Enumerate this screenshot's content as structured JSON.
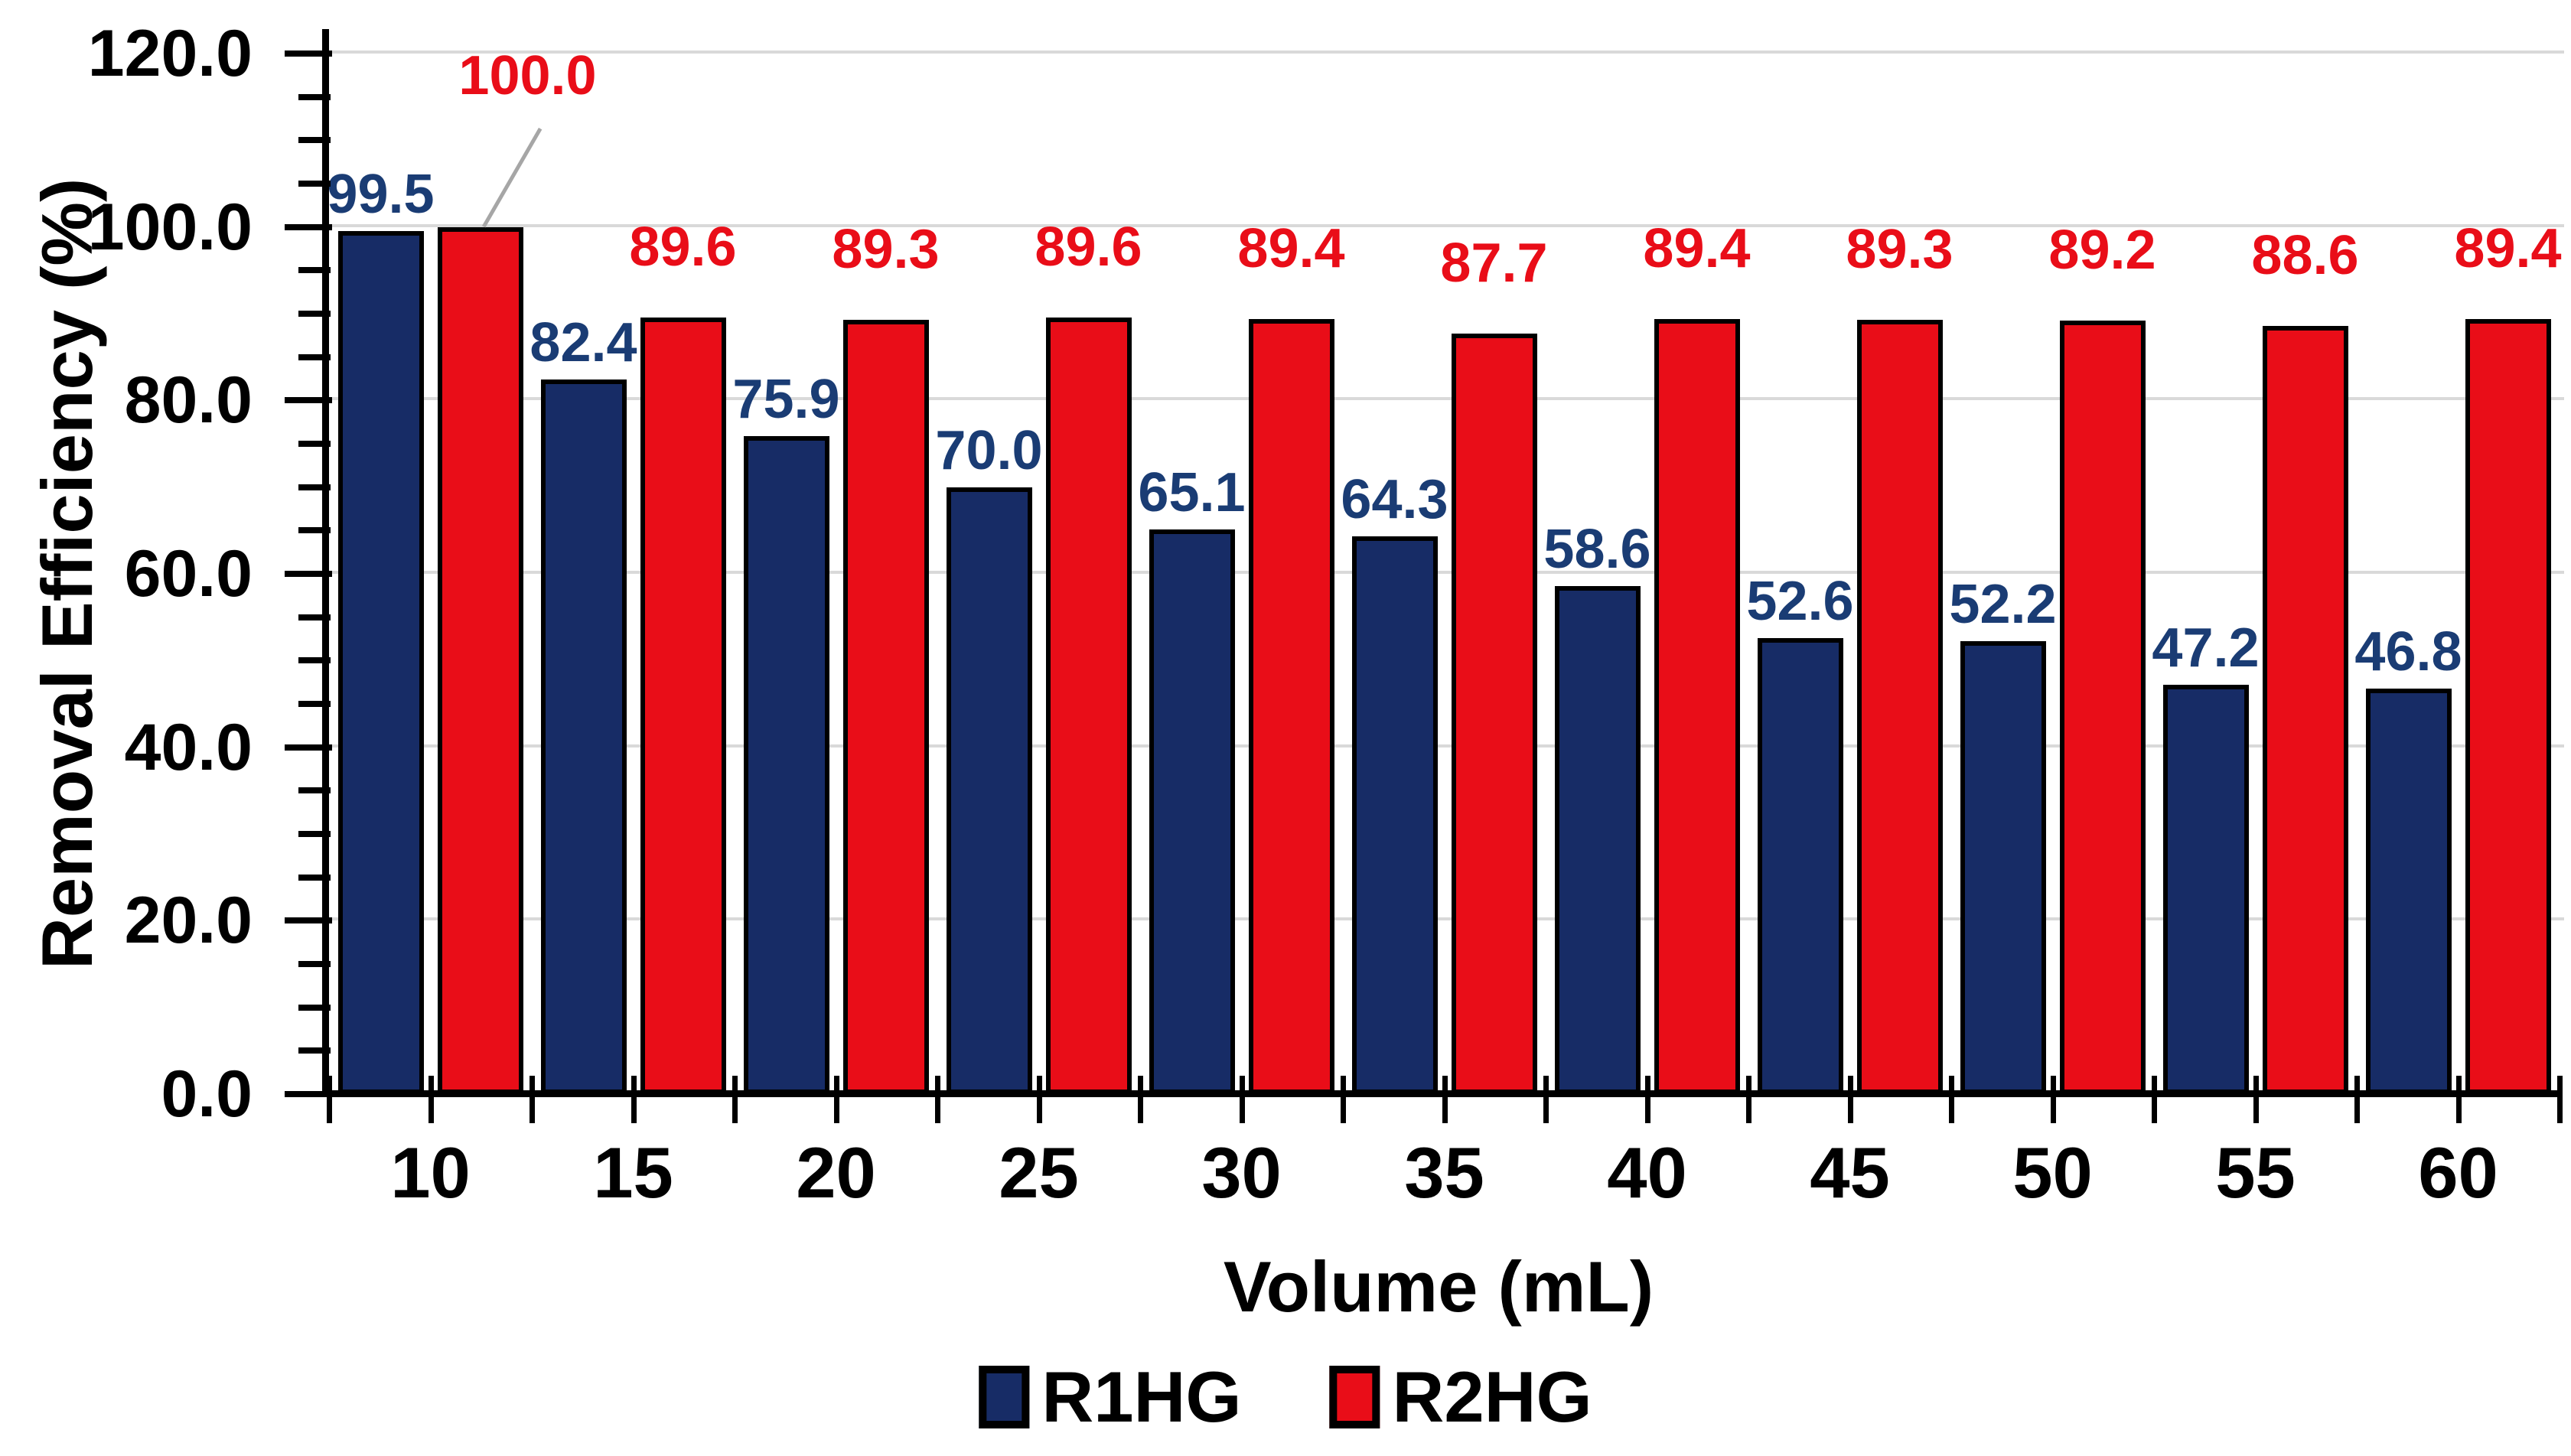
{
  "chart_data": {
    "type": "bar",
    "title": "",
    "xlabel": "Volume (mL)",
    "ylabel": "Removal Efficiency (%)",
    "ylim": [
      0,
      120
    ],
    "ytick_major_interval": 20,
    "ytick_minor_interval": 5,
    "ytick_labels": [
      "0.0",
      "20.0",
      "40.0",
      "60.0",
      "80.0",
      "100.0",
      "120.0"
    ],
    "grid": true,
    "legend_position": "bottom",
    "categories": [
      "10",
      "15",
      "20",
      "25",
      "30",
      "35",
      "40",
      "45",
      "50",
      "55",
      "60"
    ],
    "series": [
      {
        "name": "R1HG",
        "color": "#172c66",
        "label_color": "#1a3c74",
        "values": [
          99.5,
          82.4,
          75.9,
          70.0,
          65.1,
          64.3,
          58.6,
          52.6,
          52.2,
          47.2,
          46.8
        ],
        "labels": [
          "99.5",
          "82.4",
          "75.9",
          "70.0",
          "65.1",
          "64.3",
          "58.6",
          "52.6",
          "52.2",
          "47.2",
          "46.8"
        ]
      },
      {
        "name": "R2HG",
        "color": "#e90d18",
        "label_color": "#e90d18",
        "values": [
          100.0,
          89.6,
          89.3,
          89.6,
          89.4,
          87.7,
          89.4,
          89.3,
          89.2,
          88.6,
          89.4
        ],
        "labels": [
          "100.0",
          "89.6",
          "89.3",
          "89.6",
          "89.4",
          "87.7",
          "89.4",
          "89.3",
          "89.2",
          "88.6",
          "89.4"
        ]
      }
    ],
    "callout": {
      "series": "R2HG",
      "category": "10",
      "label": "100.0",
      "leader_line_color": "#a6a6a6"
    },
    "colors": {
      "gridline": "#d9d9d9",
      "axis": "#000000",
      "background": "#ffffff"
    }
  },
  "axes": {
    "x_title": "Volume (mL)",
    "y_title": "Removal Efficiency (%)"
  },
  "legend": {
    "items": [
      {
        "label": "R1HG",
        "color": "#172c66"
      },
      {
        "label": "R2HG",
        "color": "#e90d18"
      }
    ]
  }
}
